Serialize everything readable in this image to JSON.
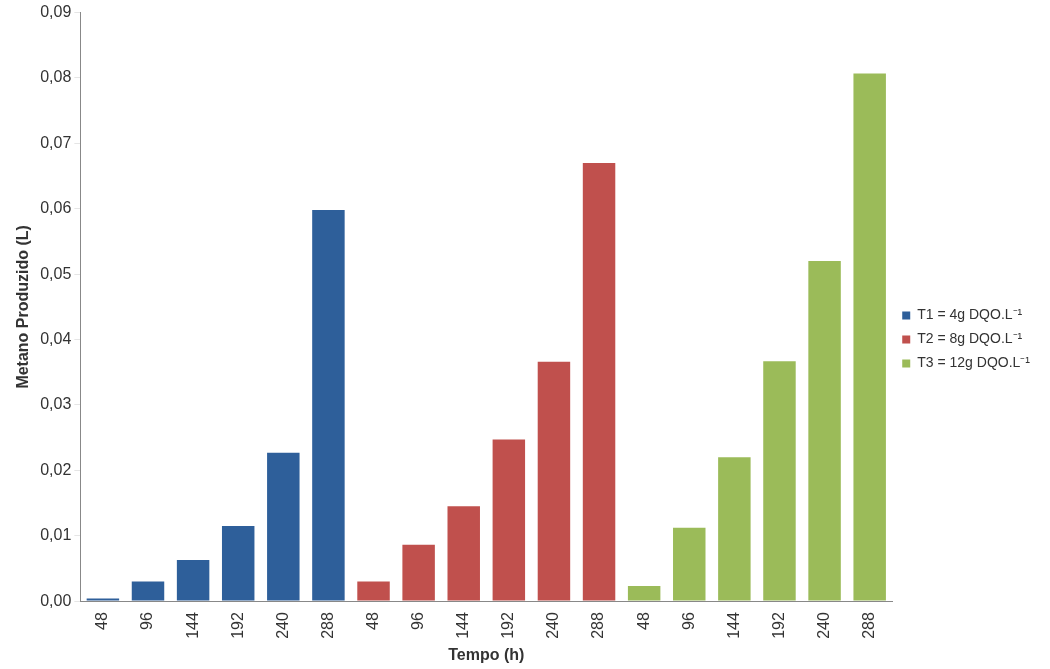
{
  "chart_data": {
    "type": "bar",
    "xlabel": "Tempo (h)",
    "ylabel": "Metano Produzido (L)",
    "categories": [
      "48",
      "96",
      "144",
      "192",
      "240",
      "288",
      "48",
      "96",
      "144",
      "192",
      "240",
      "288",
      "48",
      "96",
      "144",
      "192",
      "240",
      "288"
    ],
    "series": [
      {
        "name": "T1 = 4g DQO.L⁻¹",
        "color": "#2e5f9a",
        "values": [
          0.0004,
          0.003,
          0.0063,
          0.0115,
          0.0227,
          0.0598,
          null,
          null,
          null,
          null,
          null,
          null,
          null,
          null,
          null,
          null,
          null,
          null
        ]
      },
      {
        "name": "T2 = 8g DQO.L⁻¹",
        "color": "#c0504d",
        "values": [
          null,
          null,
          null,
          null,
          null,
          null,
          0.003,
          0.0086,
          0.0145,
          0.0247,
          0.0366,
          0.067,
          null,
          null,
          null,
          null,
          null,
          null
        ]
      },
      {
        "name": "T3 = 12g DQO.L⁻¹",
        "color": "#9bbb59",
        "values": [
          null,
          null,
          null,
          null,
          null,
          null,
          null,
          null,
          null,
          null,
          null,
          null,
          0.0023,
          0.0112,
          0.022,
          0.0367,
          0.052,
          0.0807
        ]
      }
    ],
    "ylim": [
      0,
      0.09
    ],
    "yticks": [
      {
        "value": 0,
        "label": "0,00"
      },
      {
        "value": 0.01,
        "label": "0,01"
      },
      {
        "value": 0.02,
        "label": "0,02"
      },
      {
        "value": 0.03,
        "label": "0,03"
      },
      {
        "value": 0.04,
        "label": "0,04"
      },
      {
        "value": 0.05,
        "label": "0,05"
      },
      {
        "value": 0.06,
        "label": "0,06"
      },
      {
        "value": 0.07,
        "label": "0,07"
      },
      {
        "value": 0.08,
        "label": "0,08"
      },
      {
        "value": 0.09,
        "label": "0,09"
      }
    ],
    "grid": false,
    "legend": "right"
  }
}
